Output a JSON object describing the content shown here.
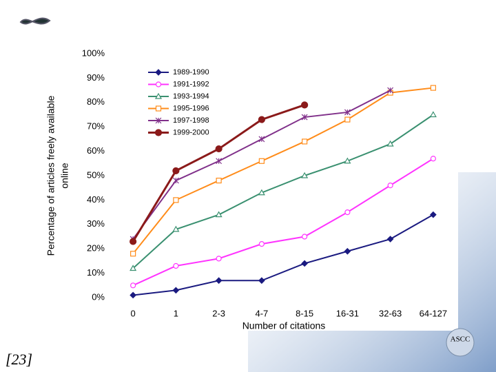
{
  "chart_data": {
    "type": "line",
    "ylabel": [
      "Percentage of articles freely available",
      "online"
    ],
    "xlabel": "Number of citations",
    "footnote": "[23]",
    "logo_text": "ASCC",
    "categories": [
      "0",
      "1",
      "2-3",
      "4-7",
      "8-15",
      "16-31",
      "32-63",
      "64-127"
    ],
    "ylim": [
      0,
      100
    ],
    "yticks": [
      {
        "value": 0,
        "label": "0%"
      },
      {
        "value": 10,
        "label": "10%"
      },
      {
        "value": 20,
        "label": "20%"
      },
      {
        "value": 30,
        "label": "30%"
      },
      {
        "value": 40,
        "label": "40%"
      },
      {
        "value": 50,
        "label": "50%"
      },
      {
        "value": 60,
        "label": "60%"
      },
      {
        "value": 70,
        "label": "70%"
      },
      {
        "value": 80,
        "label": "80%"
      },
      {
        "value": 90,
        "label": "90%"
      },
      {
        "value": 100,
        "label": "100%"
      }
    ],
    "legend": "upper left",
    "series": [
      {
        "name": "1989-1990",
        "color": "#1a1a80",
        "marker": "diamond",
        "values": [
          1,
          3,
          7,
          7,
          14,
          19,
          24,
          34
        ]
      },
      {
        "name": "1991-1992",
        "color": "#ff33ff",
        "marker": "circle-open",
        "values": [
          5,
          13,
          16,
          22,
          25,
          35,
          46,
          57
        ]
      },
      {
        "name": "1993-1994",
        "color": "#3a9070",
        "marker": "triangle",
        "values": [
          12,
          28,
          34,
          43,
          50,
          56,
          63,
          75
        ]
      },
      {
        "name": "1995-1996",
        "color": "#ff8c1a",
        "marker": "square",
        "values": [
          18,
          40,
          48,
          56,
          64,
          73,
          84,
          86
        ]
      },
      {
        "name": "1997-1998",
        "color": "#80308a",
        "marker": "star",
        "values": [
          24,
          48,
          56,
          65,
          74,
          76,
          85,
          null
        ]
      },
      {
        "name": "1999-2000",
        "color": "#8b1a1a",
        "marker": "circle-filled",
        "values": [
          23,
          52,
          61,
          73,
          79,
          null,
          null,
          null
        ]
      }
    ]
  }
}
